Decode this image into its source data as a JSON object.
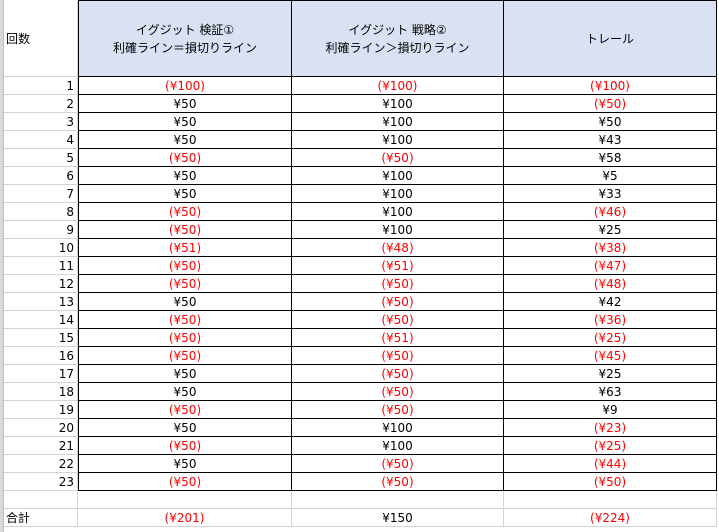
{
  "header": {
    "count_label": "回数",
    "col1": [
      "イグジット 検証①",
      "利確ライン＝損切りライン"
    ],
    "col2": [
      "イグジット 戦略②",
      "利確ライン＞損切りライン"
    ],
    "col3": "トレール"
  },
  "colors": {
    "header_fill": "#d9e1f2",
    "negative": "#ff0000"
  },
  "rows": [
    {
      "n": "1",
      "a": "(¥100)",
      "b": "(¥100)",
      "c": "(¥100)"
    },
    {
      "n": "2",
      "a": "¥50",
      "b": "¥100",
      "c": "(¥50)"
    },
    {
      "n": "3",
      "a": "¥50",
      "b": "¥100",
      "c": "¥50"
    },
    {
      "n": "4",
      "a": "¥50",
      "b": "¥100",
      "c": "¥43"
    },
    {
      "n": "5",
      "a": "(¥50)",
      "b": "(¥50)",
      "c": "¥58"
    },
    {
      "n": "6",
      "a": "¥50",
      "b": "¥100",
      "c": "¥5"
    },
    {
      "n": "7",
      "a": "¥50",
      "b": "¥100",
      "c": "¥33"
    },
    {
      "n": "8",
      "a": "(¥50)",
      "b": "¥100",
      "c": "(¥46)"
    },
    {
      "n": "9",
      "a": "(¥50)",
      "b": "¥100",
      "c": "¥25"
    },
    {
      "n": "10",
      "a": "(¥51)",
      "b": "(¥48)",
      "c": "(¥38)"
    },
    {
      "n": "11",
      "a": "(¥50)",
      "b": "(¥51)",
      "c": "(¥47)"
    },
    {
      "n": "12",
      "a": "(¥50)",
      "b": "(¥50)",
      "c": "(¥48)"
    },
    {
      "n": "13",
      "a": "¥50",
      "b": "(¥50)",
      "c": "¥42"
    },
    {
      "n": "14",
      "a": "(¥50)",
      "b": "(¥50)",
      "c": "(¥36)"
    },
    {
      "n": "15",
      "a": "(¥50)",
      "b": "(¥51)",
      "c": "(¥25)"
    },
    {
      "n": "16",
      "a": "(¥50)",
      "b": "(¥50)",
      "c": "(¥45)"
    },
    {
      "n": "17",
      "a": "¥50",
      "b": "(¥50)",
      "c": "¥25"
    },
    {
      "n": "18",
      "a": "¥50",
      "b": "(¥50)",
      "c": "¥63"
    },
    {
      "n": "19",
      "a": "(¥50)",
      "b": "(¥50)",
      "c": "¥9"
    },
    {
      "n": "20",
      "a": "¥50",
      "b": "¥100",
      "c": "(¥23)"
    },
    {
      "n": "21",
      "a": "(¥50)",
      "b": "¥100",
      "c": "(¥25)"
    },
    {
      "n": "22",
      "a": "¥50",
      "b": "(¥50)",
      "c": "(¥44)"
    },
    {
      "n": "23",
      "a": "(¥50)",
      "b": "(¥50)",
      "c": "(¥50)"
    }
  ],
  "total": {
    "label": "合計",
    "a": "(¥201)",
    "b": "¥150",
    "c": "(¥224)"
  }
}
